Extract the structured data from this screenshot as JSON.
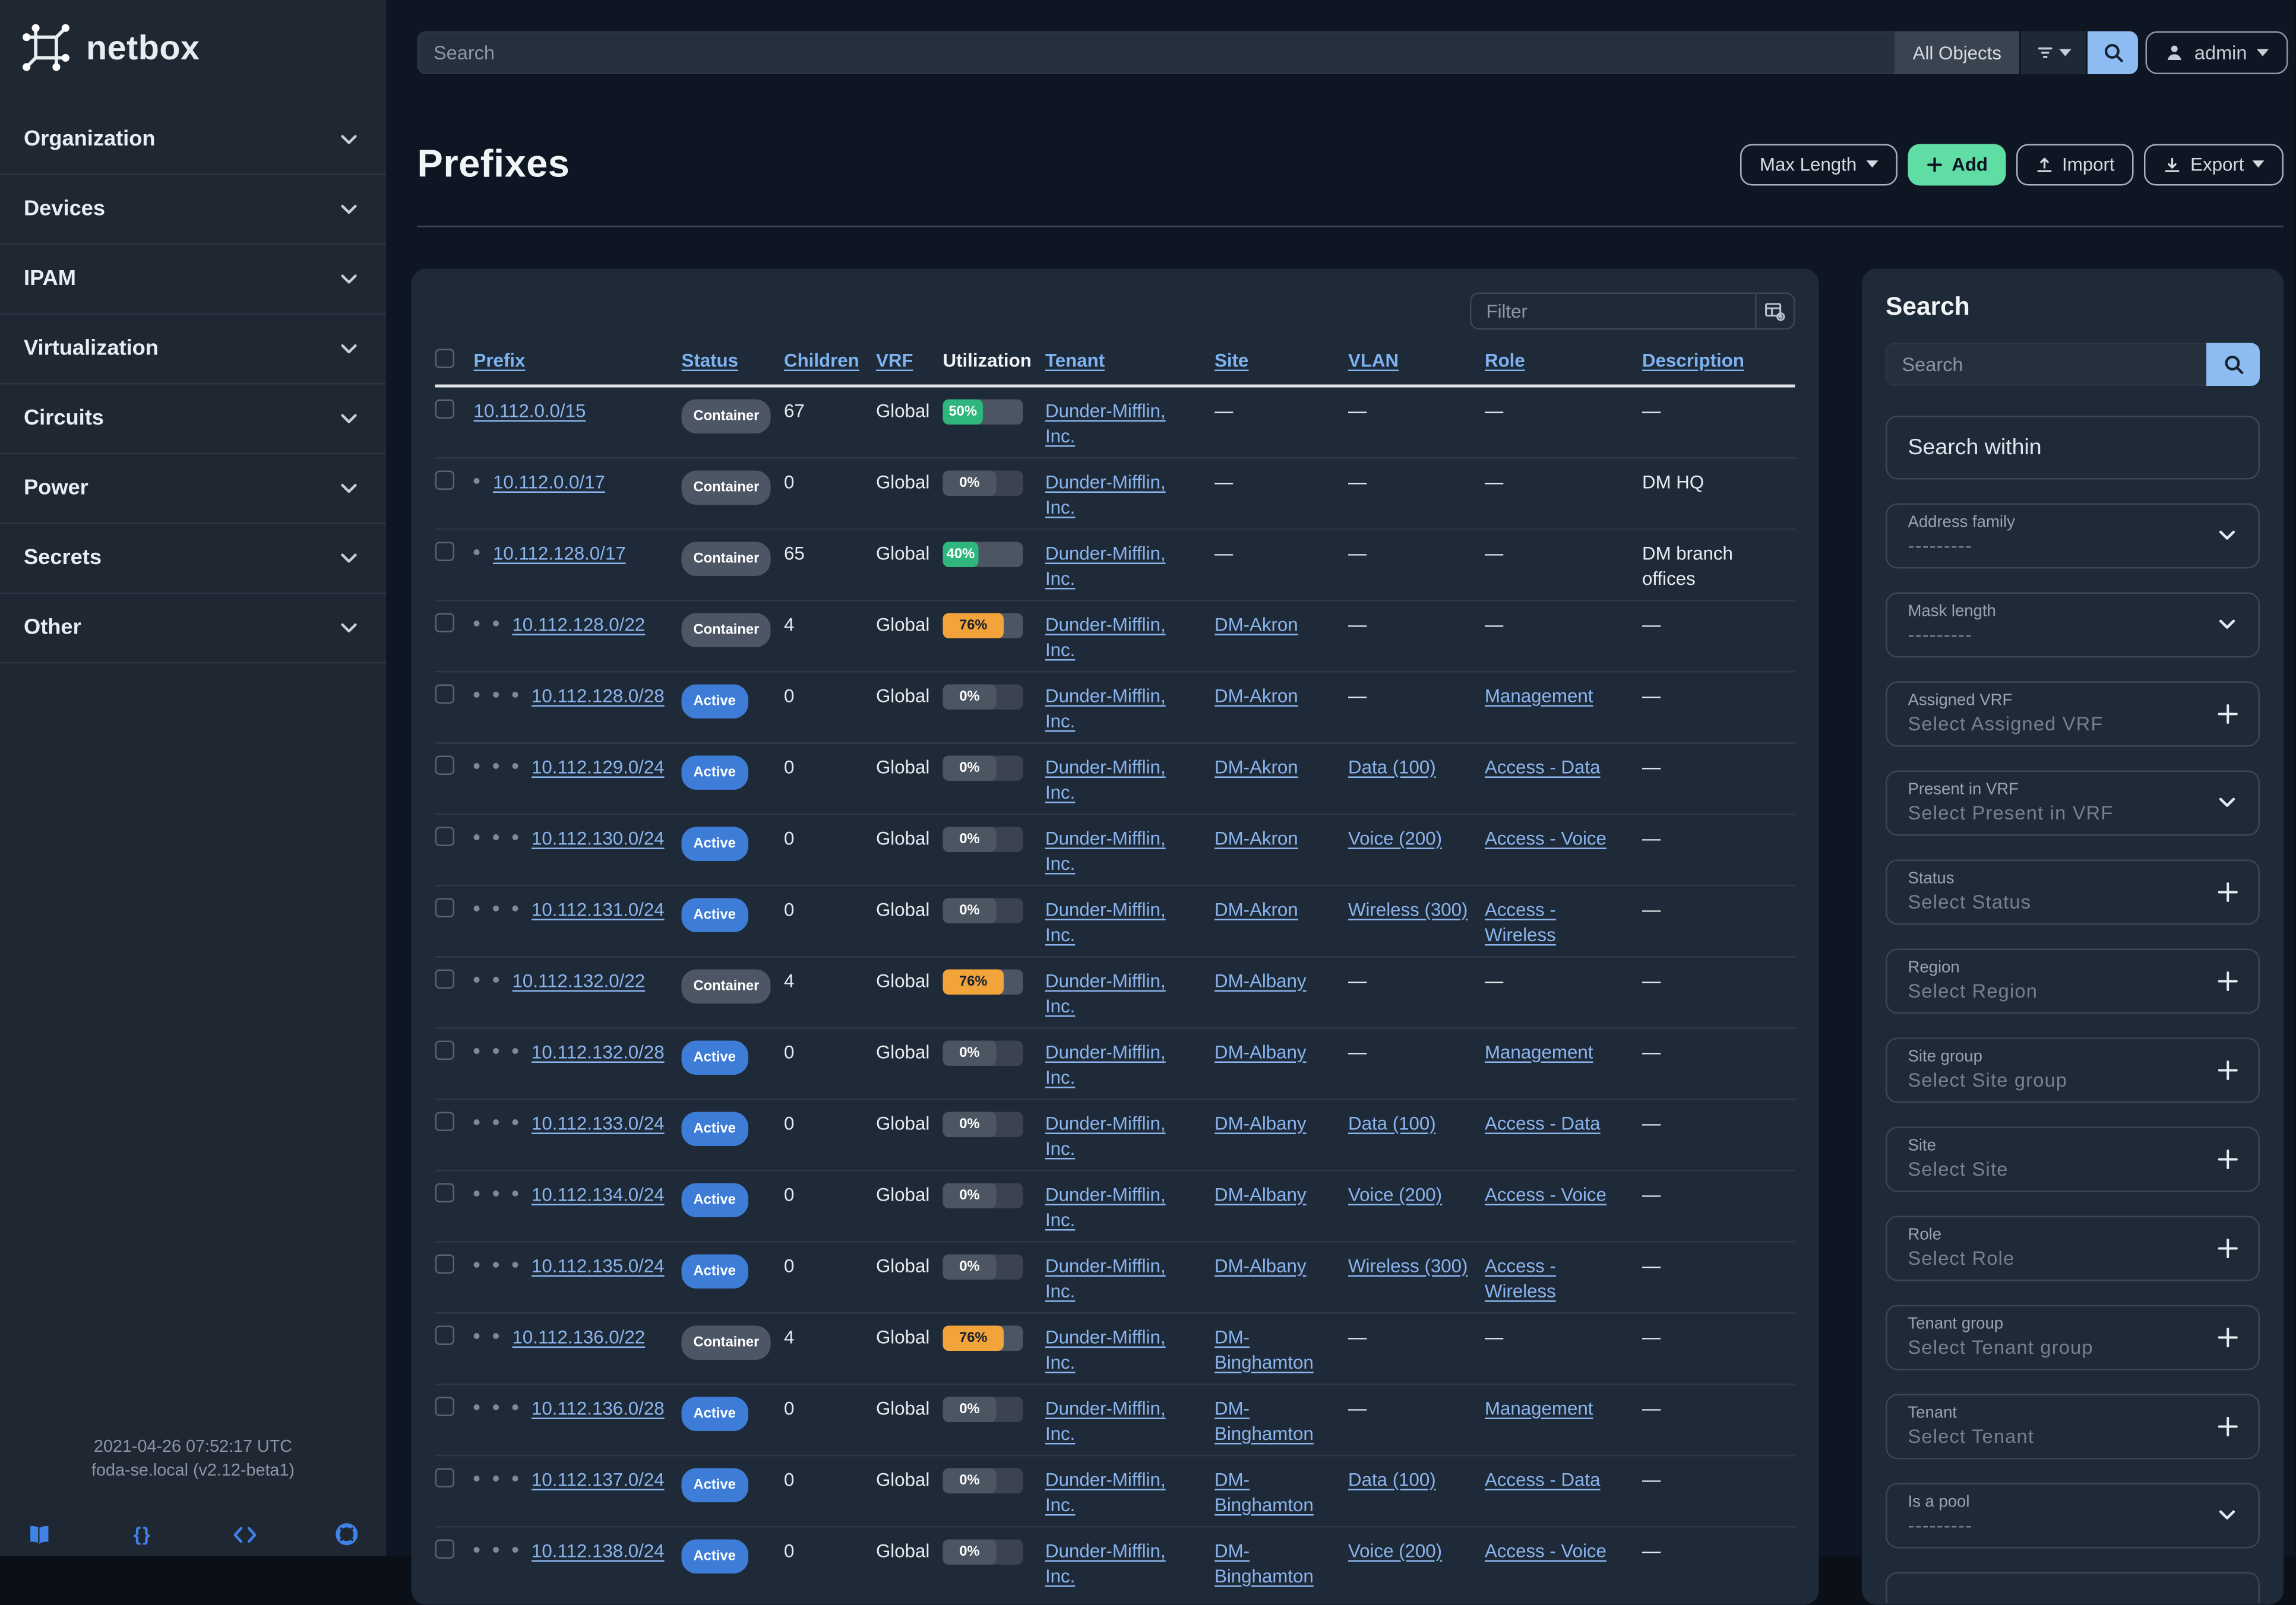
{
  "brand": {
    "name": "netbox"
  },
  "topbar": {
    "search_placeholder": "Search",
    "scope_label": "All Objects",
    "user": "admin"
  },
  "sidebar": {
    "items": [
      {
        "label": "Organization"
      },
      {
        "label": "Devices"
      },
      {
        "label": "IPAM"
      },
      {
        "label": "Virtualization"
      },
      {
        "label": "Circuits"
      },
      {
        "label": "Power"
      },
      {
        "label": "Secrets"
      },
      {
        "label": "Other"
      }
    ],
    "footer": {
      "timestamp": "2021-04-26 07:52:17 UTC",
      "host": "foda-se.local (v2.12-beta1)",
      "icons": [
        "docs-book-icon",
        "api-braces-icon",
        "source-code-icon",
        "support-lifebuoy-icon"
      ]
    }
  },
  "page": {
    "title": "Prefixes",
    "actions": {
      "max_length": "Max Length",
      "add": "Add",
      "import": "Import",
      "export": "Export"
    }
  },
  "table": {
    "filter_placeholder": "Filter",
    "columns": [
      {
        "label": "Prefix",
        "link": true
      },
      {
        "label": "Status",
        "link": true
      },
      {
        "label": "Children",
        "link": true
      },
      {
        "label": "VRF",
        "link": true
      },
      {
        "label": "Utilization",
        "link": false
      },
      {
        "label": "Tenant",
        "link": true
      },
      {
        "label": "Site",
        "link": true
      },
      {
        "label": "VLAN",
        "link": true
      },
      {
        "label": "Role",
        "link": true
      },
      {
        "label": "Description",
        "link": true
      }
    ],
    "rows": [
      {
        "depth": 0,
        "prefix": "10.112.0.0/15",
        "status": "Container",
        "children": "67",
        "vrf": "Global",
        "util": 50,
        "util_color": "green",
        "tenant": "Dunder-Mifflin, Inc.",
        "site": "",
        "vlan": "",
        "role": "",
        "description": ""
      },
      {
        "depth": 1,
        "prefix": "10.112.0.0/17",
        "status": "Container",
        "children": "0",
        "vrf": "Global",
        "util": 0,
        "util_color": "gray",
        "tenant": "Dunder-Mifflin, Inc.",
        "site": "",
        "vlan": "",
        "role": "",
        "description": "DM HQ"
      },
      {
        "depth": 1,
        "prefix": "10.112.128.0/17",
        "status": "Container",
        "children": "65",
        "vrf": "Global",
        "util": 40,
        "util_color": "green",
        "tenant": "Dunder-Mifflin, Inc.",
        "site": "",
        "vlan": "",
        "role": "",
        "description": "DM branch offices"
      },
      {
        "depth": 2,
        "prefix": "10.112.128.0/22",
        "status": "Container",
        "children": "4",
        "vrf": "Global",
        "util": 76,
        "util_color": "orange",
        "tenant": "Dunder-Mifflin, Inc.",
        "site": "DM-Akron",
        "vlan": "",
        "role": "",
        "description": ""
      },
      {
        "depth": 3,
        "prefix": "10.112.128.0/28",
        "status": "Active",
        "children": "0",
        "vrf": "Global",
        "util": 0,
        "util_color": "gray",
        "tenant": "Dunder-Mifflin, Inc.",
        "site": "DM-Akron",
        "vlan": "",
        "role": "Management",
        "description": ""
      },
      {
        "depth": 3,
        "prefix": "10.112.129.0/24",
        "status": "Active",
        "children": "0",
        "vrf": "Global",
        "util": 0,
        "util_color": "gray",
        "tenant": "Dunder-Mifflin, Inc.",
        "site": "DM-Akron",
        "vlan": "Data (100)",
        "role": "Access - Data",
        "description": ""
      },
      {
        "depth": 3,
        "prefix": "10.112.130.0/24",
        "status": "Active",
        "children": "0",
        "vrf": "Global",
        "util": 0,
        "util_color": "gray",
        "tenant": "Dunder-Mifflin, Inc.",
        "site": "DM-Akron",
        "vlan": "Voice (200)",
        "role": "Access - Voice",
        "description": ""
      },
      {
        "depth": 3,
        "prefix": "10.112.131.0/24",
        "status": "Active",
        "children": "0",
        "vrf": "Global",
        "util": 0,
        "util_color": "gray",
        "tenant": "Dunder-Mifflin, Inc.",
        "site": "DM-Akron",
        "vlan": "Wireless (300)",
        "role": "Access - Wireless",
        "description": ""
      },
      {
        "depth": 2,
        "prefix": "10.112.132.0/22",
        "status": "Container",
        "children": "4",
        "vrf": "Global",
        "util": 76,
        "util_color": "orange",
        "tenant": "Dunder-Mifflin, Inc.",
        "site": "DM-Albany",
        "vlan": "",
        "role": "",
        "description": ""
      },
      {
        "depth": 3,
        "prefix": "10.112.132.0/28",
        "status": "Active",
        "children": "0",
        "vrf": "Global",
        "util": 0,
        "util_color": "gray",
        "tenant": "Dunder-Mifflin, Inc.",
        "site": "DM-Albany",
        "vlan": "",
        "role": "Management",
        "description": ""
      },
      {
        "depth": 3,
        "prefix": "10.112.133.0/24",
        "status": "Active",
        "children": "0",
        "vrf": "Global",
        "util": 0,
        "util_color": "gray",
        "tenant": "Dunder-Mifflin, Inc.",
        "site": "DM-Albany",
        "vlan": "Data (100)",
        "role": "Access - Data",
        "description": ""
      },
      {
        "depth": 3,
        "prefix": "10.112.134.0/24",
        "status": "Active",
        "children": "0",
        "vrf": "Global",
        "util": 0,
        "util_color": "gray",
        "tenant": "Dunder-Mifflin, Inc.",
        "site": "DM-Albany",
        "vlan": "Voice (200)",
        "role": "Access - Voice",
        "description": ""
      },
      {
        "depth": 3,
        "prefix": "10.112.135.0/24",
        "status": "Active",
        "children": "0",
        "vrf": "Global",
        "util": 0,
        "util_color": "gray",
        "tenant": "Dunder-Mifflin, Inc.",
        "site": "DM-Albany",
        "vlan": "Wireless (300)",
        "role": "Access - Wireless",
        "description": ""
      },
      {
        "depth": 2,
        "prefix": "10.112.136.0/22",
        "status": "Container",
        "children": "4",
        "vrf": "Global",
        "util": 76,
        "util_color": "orange",
        "tenant": "Dunder-Mifflin, Inc.",
        "site": "DM-Binghamton",
        "vlan": "",
        "role": "",
        "description": ""
      },
      {
        "depth": 3,
        "prefix": "10.112.136.0/28",
        "status": "Active",
        "children": "0",
        "vrf": "Global",
        "util": 0,
        "util_color": "gray",
        "tenant": "Dunder-Mifflin, Inc.",
        "site": "DM-Binghamton",
        "vlan": "",
        "role": "Management",
        "description": ""
      },
      {
        "depth": 3,
        "prefix": "10.112.137.0/24",
        "status": "Active",
        "children": "0",
        "vrf": "Global",
        "util": 0,
        "util_color": "gray",
        "tenant": "Dunder-Mifflin, Inc.",
        "site": "DM-Binghamton",
        "vlan": "Data (100)",
        "role": "Access - Data",
        "description": ""
      },
      {
        "depth": 3,
        "prefix": "10.112.138.0/24",
        "status": "Active",
        "children": "0",
        "vrf": "Global",
        "util": 0,
        "util_color": "gray",
        "tenant": "Dunder-Mifflin, Inc.",
        "site": "DM-Binghamton",
        "vlan": "Voice (200)",
        "role": "Access - Voice",
        "description": ""
      }
    ]
  },
  "filters": {
    "title": "Search",
    "search_placeholder": "Search",
    "search_within_label": "Search within",
    "fields": [
      {
        "label": "Address family",
        "value": "---------",
        "icon": "chevron"
      },
      {
        "label": "Mask length",
        "value": "---------",
        "icon": "chevron"
      },
      {
        "label": "Assigned VRF",
        "value": "Select Assigned VRF",
        "icon": "plus"
      },
      {
        "label": "Present in VRF",
        "value": "Select Present in VRF",
        "icon": "chevron"
      },
      {
        "label": "Status",
        "value": "Select Status",
        "icon": "plus"
      },
      {
        "label": "Region",
        "value": "Select Region",
        "icon": "plus"
      },
      {
        "label": "Site group",
        "value": "Select Site group",
        "icon": "plus"
      },
      {
        "label": "Site",
        "value": "Select Site",
        "icon": "plus"
      },
      {
        "label": "Role",
        "value": "Select Role",
        "icon": "plus"
      },
      {
        "label": "Tenant group",
        "value": "Select Tenant group",
        "icon": "plus"
      },
      {
        "label": "Tenant",
        "value": "Select Tenant",
        "icon": "plus"
      },
      {
        "label": "Is a pool",
        "value": "---------",
        "icon": "chevron"
      }
    ]
  },
  "colors": {
    "page_bg": "#0f1623",
    "sidebar_bg": "#1f2733",
    "card_bg": "#1f2a38",
    "link": "#8ab4ee",
    "active_badge": "#3d7cd7",
    "container_badge": "#4d5664",
    "util_green": "#2eb67d",
    "util_orange": "#f2a33a",
    "add_button": "#5fdda4",
    "search_button": "#8cbcf2"
  }
}
